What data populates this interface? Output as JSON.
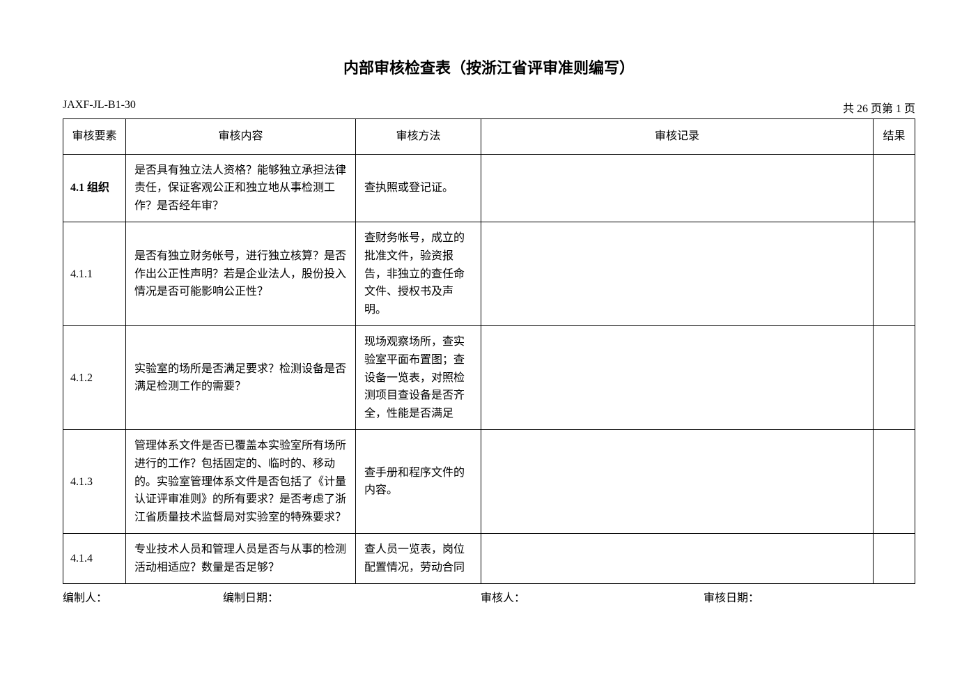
{
  "title": "内部审核检查表（按浙江省评审准则编写）",
  "form_code": "JAXF-JL-B1-30",
  "page_info": "共 26 页第 1 页",
  "columns": {
    "element": "审核要素",
    "content": "审核内容",
    "method": "审核方法",
    "record": "审核记录",
    "result": "结果"
  },
  "rows": [
    {
      "element": "4.1 组织",
      "element_bold": true,
      "content": "是否具有独立法人资格？能够独立承担法律责任，保证客观公正和独立地从事检测工作？是否经年审？",
      "method": "查执照或登记证。",
      "record": "",
      "result": ""
    },
    {
      "element": "4.1.1",
      "element_bold": false,
      "content": "是否有独立财务帐号，进行独立核算？是否作出公正性声明？若是企业法人，股份投入情况是否可能影响公正性？",
      "method": "查财务帐号，成立的批准文件，验资报告，非独立的查任命文件、授权书及声明。",
      "record": "",
      "result": ""
    },
    {
      "element": "4.1.2",
      "element_bold": false,
      "content": "实验室的场所是否满足要求？检测设备是否满足检测工作的需要？",
      "method": "现场观察场所，查实验室平面布置图；查设备一览表，对照检测项目查设备是否齐全，性能是否满足",
      "record": "",
      "result": ""
    },
    {
      "element": "4.1.3",
      "element_bold": false,
      "content": "管理体系文件是否已覆盖本实验室所有场所进行的工作？包括固定的、临时的、移动的。实验室管理体系文件是否包括了《计量认证评审准则》的所有要求？是否考虑了浙江省质量技术监督局对实验室的特殊要求？",
      "method": "查手册和程序文件的内容。",
      "record": "",
      "result": ""
    },
    {
      "element": "4.1.4",
      "element_bold": false,
      "content": "专业技术人员和管理人员是否与从事的检测活动相适应？数量是否足够？",
      "method": "查人员一览表，岗位配置情况，劳动合同",
      "record": "",
      "result": ""
    }
  ],
  "footer": {
    "author_label": "编制人：",
    "author_date_label": "编制日期：",
    "reviewer_label": "审核人：",
    "reviewer_date_label": "审核日期："
  }
}
